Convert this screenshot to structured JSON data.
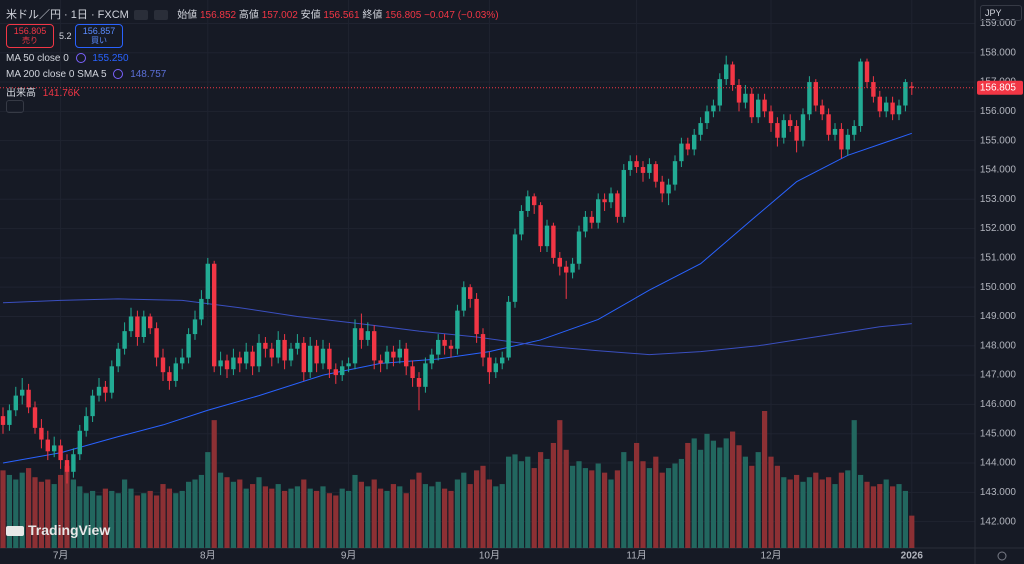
{
  "chart_data": {
    "type": "candlestick",
    "header": {
      "symbol": "米ドル／円 · 1日 · FXCM",
      "open_label": "始値",
      "high_label": "高値",
      "low_label": "安値",
      "close_label": "終値",
      "change": "−0.047 (−0.03%)"
    },
    "sell_label": "売り",
    "buy_label": "買い",
    "buy_price": 156.857,
    "spread": 5.2,
    "currency": "JPY",
    "brand": "TradingView",
    "up_color": "#22ab94",
    "down_color": "#f23645",
    "volume_up_color": "#22675f",
    "volume_down_color": "#8c3034",
    "grid": true,
    "ylim": [
      141.1,
      159.8
    ],
    "yticks": [
      {
        "value": 142,
        "label": "142.000"
      },
      {
        "value": 143,
        "label": "143.000"
      },
      {
        "value": 144,
        "label": "144.000"
      },
      {
        "value": 145,
        "label": "145.000"
      },
      {
        "value": 146,
        "label": "146.000"
      },
      {
        "value": 147,
        "label": "147.000"
      },
      {
        "value": 148,
        "label": "148.000"
      },
      {
        "value": 149,
        "label": "149.000"
      },
      {
        "value": 150,
        "label": "150.000"
      },
      {
        "value": 151,
        "label": "151.000"
      },
      {
        "value": 152,
        "label": "152.000"
      },
      {
        "value": 153,
        "label": "153.000"
      },
      {
        "value": 154,
        "label": "154.000"
      },
      {
        "value": 155,
        "label": "155.000"
      },
      {
        "value": 156,
        "label": "156.000"
      },
      {
        "value": 157,
        "label": "157.000"
      },
      {
        "value": 158,
        "label": "158.000"
      },
      {
        "value": 159,
        "label": "159.000"
      }
    ],
    "categories": [
      null,
      null,
      null,
      null,
      null,
      null,
      null,
      null,
      null,
      "7月",
      null,
      null,
      null,
      null,
      null,
      null,
      null,
      null,
      null,
      null,
      null,
      null,
      null,
      null,
      null,
      null,
      null,
      null,
      null,
      null,
      null,
      null,
      "8月",
      null,
      null,
      null,
      null,
      null,
      null,
      null,
      null,
      null,
      null,
      null,
      null,
      null,
      null,
      null,
      null,
      null,
      null,
      null,
      null,
      null,
      "9月",
      null,
      null,
      null,
      null,
      null,
      null,
      null,
      null,
      null,
      null,
      null,
      null,
      null,
      null,
      null,
      null,
      null,
      null,
      null,
      null,
      null,
      "10月",
      null,
      null,
      null,
      null,
      null,
      null,
      null,
      null,
      null,
      null,
      null,
      null,
      null,
      null,
      null,
      null,
      null,
      null,
      null,
      null,
      null,
      null,
      "11月",
      null,
      null,
      null,
      null,
      null,
      null,
      null,
      null,
      null,
      null,
      null,
      null,
      null,
      null,
      null,
      null,
      null,
      null,
      null,
      null,
      "12月",
      null,
      null,
      null,
      null,
      null,
      null,
      null,
      null,
      null,
      null,
      null,
      null,
      null,
      null,
      null,
      null,
      null,
      null,
      null,
      null,
      null,
      "2026"
    ],
    "candles": [
      [
        145.6,
        145.9,
        145.0,
        145.3
      ],
      [
        145.3,
        146.0,
        145.1,
        145.8
      ],
      [
        145.8,
        146.6,
        145.6,
        146.3
      ],
      [
        146.3,
        146.9,
        146.0,
        146.5
      ],
      [
        146.5,
        146.7,
        145.7,
        145.9
      ],
      [
        145.9,
        146.1,
        145.0,
        145.2
      ],
      [
        145.2,
        145.5,
        144.5,
        144.8
      ],
      [
        144.8,
        145.1,
        144.1,
        144.4
      ],
      [
        144.4,
        144.9,
        144.2,
        144.6
      ],
      [
        144.6,
        144.8,
        143.8,
        144.1
      ],
      [
        144.1,
        144.3,
        143.3,
        143.7
      ],
      [
        143.7,
        144.5,
        143.5,
        144.3
      ],
      [
        144.3,
        145.3,
        144.1,
        145.1
      ],
      [
        145.1,
        145.9,
        144.9,
        145.6
      ],
      [
        145.6,
        146.5,
        145.4,
        146.3
      ],
      [
        146.3,
        146.9,
        146.1,
        146.6
      ],
      [
        146.6,
        146.8,
        146.1,
        146.4
      ],
      [
        146.4,
        147.5,
        146.2,
        147.3
      ],
      [
        147.3,
        148.1,
        147.1,
        147.9
      ],
      [
        147.9,
        148.8,
        147.7,
        148.5
      ],
      [
        148.5,
        149.3,
        148.3,
        149.0
      ],
      [
        149.0,
        149.2,
        148.0,
        148.3
      ],
      [
        148.3,
        149.2,
        148.1,
        149.0
      ],
      [
        149.0,
        149.1,
        148.4,
        148.6
      ],
      [
        148.6,
        148.8,
        147.3,
        147.6
      ],
      [
        147.6,
        147.9,
        146.8,
        147.1
      ],
      [
        147.1,
        147.3,
        146.5,
        146.8
      ],
      [
        146.8,
        147.6,
        146.6,
        147.4
      ],
      [
        147.4,
        147.9,
        147.2,
        147.6
      ],
      [
        147.6,
        148.6,
        147.4,
        148.4
      ],
      [
        148.4,
        149.2,
        148.2,
        148.9
      ],
      [
        148.9,
        149.9,
        148.7,
        149.6
      ],
      [
        149.6,
        151.0,
        149.4,
        150.8
      ],
      [
        150.8,
        150.9,
        147.1,
        147.3
      ],
      [
        147.3,
        147.8,
        147.0,
        147.5
      ],
      [
        147.5,
        147.7,
        146.9,
        147.2
      ],
      [
        147.2,
        147.9,
        147.0,
        147.6
      ],
      [
        147.6,
        147.8,
        147.1,
        147.4
      ],
      [
        147.4,
        148.1,
        147.2,
        147.8
      ],
      [
        147.8,
        148.0,
        147.0,
        147.3
      ],
      [
        147.3,
        148.4,
        147.1,
        148.1
      ],
      [
        148.1,
        148.3,
        147.6,
        147.9
      ],
      [
        147.9,
        148.1,
        147.3,
        147.6
      ],
      [
        147.6,
        148.5,
        147.4,
        148.2
      ],
      [
        148.2,
        148.4,
        147.2,
        147.5
      ],
      [
        147.5,
        148.1,
        147.3,
        147.9
      ],
      [
        147.9,
        148.4,
        147.7,
        148.1
      ],
      [
        148.1,
        148.3,
        146.8,
        147.1
      ],
      [
        147.1,
        148.3,
        146.9,
        148.0
      ],
      [
        148.0,
        148.2,
        147.1,
        147.4
      ],
      [
        147.4,
        148.2,
        147.2,
        147.9
      ],
      [
        147.9,
        148.1,
        146.9,
        147.2
      ],
      [
        147.2,
        147.4,
        146.7,
        147.0
      ],
      [
        147.0,
        147.5,
        146.8,
        147.3
      ],
      [
        147.3,
        147.6,
        147.1,
        147.4
      ],
      [
        147.4,
        148.9,
        147.2,
        148.6
      ],
      [
        148.6,
        149.1,
        147.9,
        148.2
      ],
      [
        148.2,
        148.8,
        148.0,
        148.5
      ],
      [
        148.5,
        148.7,
        147.2,
        147.5
      ],
      [
        147.5,
        147.7,
        147.1,
        147.4
      ],
      [
        147.4,
        148.0,
        147.2,
        147.8
      ],
      [
        147.8,
        148.0,
        147.3,
        147.6
      ],
      [
        147.6,
        148.2,
        147.4,
        147.9
      ],
      [
        147.9,
        148.1,
        147.0,
        147.3
      ],
      [
        147.3,
        147.5,
        146.6,
        146.9
      ],
      [
        146.9,
        147.1,
        145.8,
        146.6
      ],
      [
        146.6,
        147.6,
        146.4,
        147.4
      ],
      [
        147.4,
        147.9,
        147.2,
        147.7
      ],
      [
        147.7,
        148.4,
        147.5,
        148.2
      ],
      [
        148.2,
        148.4,
        147.7,
        148.0
      ],
      [
        148.0,
        148.2,
        147.6,
        147.9
      ],
      [
        147.9,
        149.4,
        147.7,
        149.2
      ],
      [
        149.2,
        150.2,
        149.0,
        150.0
      ],
      [
        150.0,
        150.1,
        149.3,
        149.6
      ],
      [
        149.6,
        149.8,
        148.1,
        148.4
      ],
      [
        148.4,
        148.6,
        147.3,
        147.6
      ],
      [
        147.6,
        147.8,
        146.7,
        147.1
      ],
      [
        147.1,
        147.6,
        146.9,
        147.4
      ],
      [
        147.4,
        147.8,
        147.2,
        147.6
      ],
      [
        147.6,
        149.7,
        147.5,
        149.5
      ],
      [
        149.5,
        152.0,
        149.3,
        151.8
      ],
      [
        151.8,
        152.8,
        151.6,
        152.6
      ],
      [
        152.6,
        153.3,
        152.4,
        153.1
      ],
      [
        153.1,
        153.2,
        152.5,
        152.8
      ],
      [
        152.8,
        152.9,
        151.2,
        151.4
      ],
      [
        151.4,
        152.3,
        151.2,
        152.1
      ],
      [
        152.1,
        152.2,
        150.8,
        151.0
      ],
      [
        151.0,
        151.2,
        150.4,
        150.7
      ],
      [
        150.7,
        150.9,
        149.6,
        150.5
      ],
      [
        150.5,
        151.0,
        150.3,
        150.8
      ],
      [
        150.8,
        152.1,
        150.6,
        151.9
      ],
      [
        151.9,
        152.6,
        151.7,
        152.4
      ],
      [
        152.4,
        152.6,
        152.0,
        152.2
      ],
      [
        152.2,
        153.2,
        152.0,
        153.0
      ],
      [
        153.0,
        153.2,
        152.6,
        152.9
      ],
      [
        152.9,
        153.4,
        152.7,
        153.2
      ],
      [
        153.2,
        153.3,
        152.2,
        152.4
      ],
      [
        152.4,
        154.2,
        152.2,
        154.0
      ],
      [
        154.0,
        154.5,
        153.8,
        154.3
      ],
      [
        154.3,
        154.5,
        153.9,
        154.1
      ],
      [
        154.1,
        154.3,
        153.6,
        153.9
      ],
      [
        153.9,
        154.4,
        153.7,
        154.2
      ],
      [
        154.2,
        154.3,
        153.4,
        153.6
      ],
      [
        153.6,
        153.8,
        152.9,
        153.2
      ],
      [
        153.2,
        153.7,
        152.8,
        153.5
      ],
      [
        153.5,
        154.5,
        153.3,
        154.3
      ],
      [
        154.3,
        155.1,
        154.1,
        154.9
      ],
      [
        154.9,
        155.1,
        154.5,
        154.7
      ],
      [
        154.7,
        155.4,
        154.5,
        155.2
      ],
      [
        155.2,
        155.8,
        155.0,
        155.6
      ],
      [
        155.6,
        156.2,
        155.4,
        156.0
      ],
      [
        156.0,
        156.4,
        155.8,
        156.2
      ],
      [
        156.2,
        157.3,
        156.0,
        157.1
      ],
      [
        157.1,
        157.9,
        156.9,
        157.6
      ],
      [
        157.6,
        157.7,
        156.7,
        156.9
      ],
      [
        156.9,
        157.1,
        156.0,
        156.3
      ],
      [
        156.3,
        156.9,
        156.1,
        156.6
      ],
      [
        156.6,
        156.8,
        155.6,
        155.8
      ],
      [
        155.8,
        156.6,
        155.6,
        156.4
      ],
      [
        156.4,
        156.6,
        155.8,
        156.0
      ],
      [
        156.0,
        156.2,
        155.3,
        155.6
      ],
      [
        155.6,
        155.8,
        154.8,
        155.1
      ],
      [
        155.1,
        155.9,
        154.9,
        155.7
      ],
      [
        155.7,
        155.9,
        155.3,
        155.5
      ],
      [
        155.5,
        155.7,
        154.6,
        155.0
      ],
      [
        155.0,
        156.1,
        154.8,
        155.9
      ],
      [
        155.9,
        157.2,
        155.7,
        157.0
      ],
      [
        157.0,
        157.1,
        156.0,
        156.2
      ],
      [
        156.2,
        156.4,
        155.7,
        155.9
      ],
      [
        155.9,
        156.1,
        155.0,
        155.2
      ],
      [
        155.2,
        155.6,
        155.0,
        155.4
      ],
      [
        155.4,
        155.6,
        154.4,
        154.7
      ],
      [
        154.7,
        155.4,
        154.5,
        155.2
      ],
      [
        155.2,
        155.7,
        155.0,
        155.5
      ],
      [
        155.5,
        157.8,
        155.3,
        157.7
      ],
      [
        157.7,
        157.8,
        156.8,
        157.0
      ],
      [
        157.0,
        157.2,
        156.3,
        156.5
      ],
      [
        156.5,
        156.7,
        155.8,
        156.0
      ],
      [
        156.0,
        156.5,
        155.8,
        156.3
      ],
      [
        156.3,
        156.5,
        155.7,
        155.9
      ],
      [
        155.9,
        156.4,
        155.7,
        156.2
      ],
      [
        156.2,
        157.1,
        156.0,
        157.0
      ],
      [
        156.852,
        157.002,
        156.561,
        156.805
      ]
    ],
    "volume_label": "出来高",
    "volume_value_label": "141.76K",
    "vlim": [
      0,
      2400000
    ],
    "volumes": [
      340000,
      320000,
      300000,
      330000,
      350000,
      310000,
      290000,
      300000,
      280000,
      320000,
      360000,
      300000,
      270000,
      240000,
      250000,
      230000,
      260000,
      250000,
      240000,
      300000,
      260000,
      230000,
      240000,
      250000,
      230000,
      280000,
      260000,
      240000,
      250000,
      290000,
      300000,
      320000,
      420000,
      560000,
      330000,
      310000,
      290000,
      300000,
      260000,
      280000,
      310000,
      270000,
      260000,
      280000,
      250000,
      260000,
      270000,
      300000,
      260000,
      250000,
      270000,
      240000,
      230000,
      260000,
      250000,
      320000,
      290000,
      270000,
      300000,
      260000,
      250000,
      280000,
      270000,
      240000,
      300000,
      330000,
      280000,
      270000,
      290000,
      260000,
      250000,
      300000,
      330000,
      280000,
      340000,
      360000,
      300000,
      270000,
      280000,
      400000,
      410000,
      380000,
      400000,
      350000,
      420000,
      390000,
      460000,
      560000,
      430000,
      360000,
      380000,
      350000,
      340000,
      370000,
      330000,
      300000,
      340000,
      420000,
      380000,
      460000,
      380000,
      350000,
      400000,
      330000,
      350000,
      370000,
      390000,
      460000,
      480000,
      430000,
      500000,
      470000,
      440000,
      480000,
      510000,
      450000,
      400000,
      360000,
      420000,
      600000,
      400000,
      360000,
      310000,
      300000,
      320000,
      290000,
      310000,
      330000,
      300000,
      310000,
      280000,
      330000,
      340000,
      560000,
      320000,
      290000,
      270000,
      280000,
      300000,
      270000,
      280000,
      250000,
      141760
    ],
    "ma50": {
      "name": "MA 50 close 0",
      "color": "#2962ff",
      "legend_value": "155.250",
      "x": [
        0,
        9,
        18,
        25,
        32,
        40,
        50,
        59,
        68,
        76,
        84,
        93,
        101,
        109,
        117,
        124,
        132,
        142
      ],
      "values": [
        144.0,
        144.35,
        144.9,
        145.3,
        145.8,
        146.3,
        147.0,
        147.4,
        147.55,
        147.8,
        148.2,
        148.9,
        149.9,
        150.8,
        152.3,
        153.6,
        154.5,
        155.25
      ]
    },
    "ma200": {
      "name": "MA 200 close 0 SMA 5",
      "color": "#3a4fc0",
      "legend_value": "148.757",
      "x": [
        0,
        9,
        18,
        28,
        37,
        46,
        56,
        65,
        74,
        84,
        93,
        101,
        109,
        118,
        128,
        137,
        142
      ],
      "values": [
        149.47,
        149.55,
        149.6,
        149.55,
        149.3,
        149.0,
        148.75,
        148.5,
        148.3,
        148.0,
        147.83,
        147.7,
        147.8,
        148.0,
        148.34,
        148.65,
        148.757
      ]
    }
  }
}
